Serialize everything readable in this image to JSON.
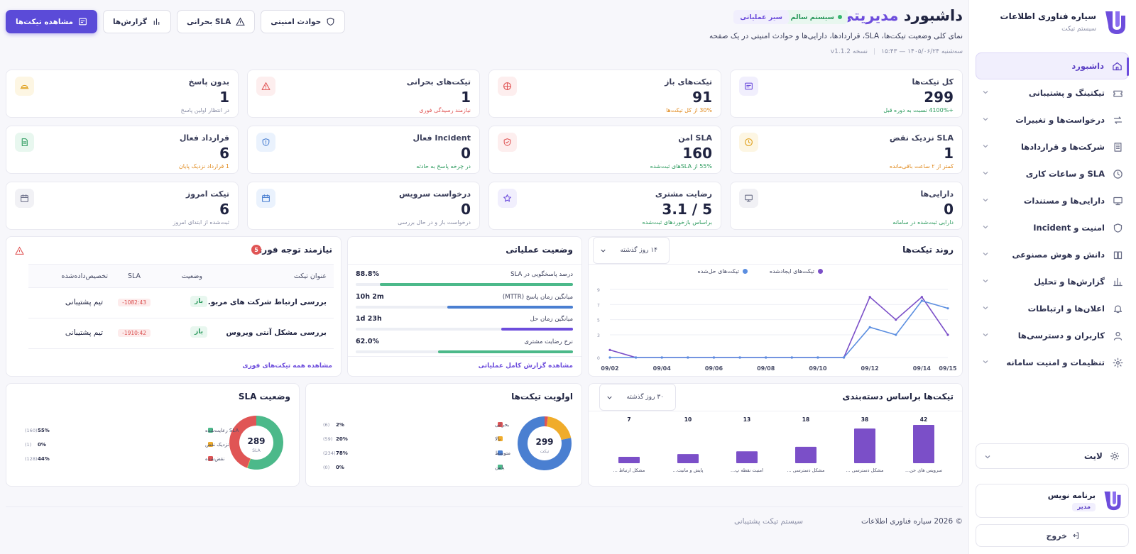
{
  "brand": {
    "title": "سیاره فناوری اطلاعات",
    "subtitle": "سیستم تیکت"
  },
  "sidebar": {
    "items": [
      {
        "label": "داشبورد",
        "icon": "home-icon",
        "active": true
      },
      {
        "label": "تیکتینگ و پشتیبانی",
        "icon": "ticket-icon"
      },
      {
        "label": "درخواست‌ها و تغییرات",
        "icon": "swap-icon"
      },
      {
        "label": "شرکت‌ها و قراردادها",
        "icon": "building-icon"
      },
      {
        "label": "SLA و ساعات کاری",
        "icon": "clock-icon"
      },
      {
        "label": "دارایی‌ها و مستندات",
        "icon": "monitor-icon"
      },
      {
        "label": "امنیت و Incident",
        "icon": "shield-icon"
      },
      {
        "label": "دانش و هوش مصنوعی",
        "icon": "book-icon"
      },
      {
        "label": "گزارش‌ها و تحلیل",
        "icon": "bar-chart-icon"
      },
      {
        "label": "اعلان‌ها و ارتباطات",
        "icon": "bell-icon"
      },
      {
        "label": "کاربران و دسترسی‌ها",
        "icon": "user-icon"
      },
      {
        "label": "تنظیمات و امنیت سامانه",
        "icon": "gear-icon"
      }
    ],
    "theme_label": "لایت",
    "user": {
      "name": "برنامه نویس",
      "role": "مدیر"
    },
    "logout_label": "خروج"
  },
  "header": {
    "title_part1": "داشبورد",
    "title_part2": "مدیریتی",
    "status_badge": "سیستم سالم",
    "mode_badge": "سیر عملیاتی",
    "description": "نمای کلی وضعیت تیکت‌ها، SLA، قراردادها، دارایی‌ها و حوادث امنیتی در یک صفحه",
    "date": "سه‌شنبه ۱۴۰۵/۰۶/۲۴ — ۱۵:۴۳",
    "version": "نسخه v1.1.2",
    "actions": {
      "security": "حوادث امنیتی",
      "sla": "SLA بحرانی",
      "reports": "گزارش‌ها",
      "view_tickets": "مشاهده تیکت‌ها"
    }
  },
  "stats": [
    {
      "label": "کل تیکت‌ها",
      "value": "299",
      "note": "+4100% نسبت به دوره قبل",
      "note_color": "#2b9a5d",
      "icon": "message-icon",
      "tint": "#f1effd",
      "ink": "#6d4ddc"
    },
    {
      "label": "تیکت‌های باز",
      "value": "91",
      "note": "30% از کل تیکت‌ها",
      "note_color": "#e08a1e",
      "icon": "target-icon",
      "tint": "#fdeeee",
      "ink": "#e05555"
    },
    {
      "label": "تیکت‌های بحرانی",
      "value": "1",
      "note": "نیازمند رسیدگی فوری",
      "note_color": "#e05555",
      "icon": "warning-icon",
      "tint": "#fdeeee",
      "ink": "#e05555"
    },
    {
      "label": "بدون پاسخ",
      "value": "1",
      "note": "در انتظار اولین پاسخ",
      "note_color": "#8a8ea6",
      "icon": "hourglass-icon",
      "tint": "#fdf6e3",
      "ink": "#e0a11e"
    },
    {
      "label": "SLA نزدیک نقض",
      "value": "1",
      "note": "کمتر از ۲ ساعت باقی‌مانده",
      "note_color": "#e08a1e",
      "icon": "clock-icon",
      "tint": "#fdf6e3",
      "ink": "#e0a11e"
    },
    {
      "label": "SLA امن",
      "value": "160",
      "note": "55% از SLAهای ثبت‌شده",
      "note_color": "#2b9a5d",
      "icon": "shield-check-icon",
      "tint": "#fdeeee",
      "ink": "#e05555"
    },
    {
      "label": "Incident فعال",
      "value": "0",
      "note": "در چرخه پاسخ به حادثه",
      "note_color": "#2b9a5d",
      "icon": "shield-alert-icon",
      "tint": "#eaf2fd",
      "ink": "#4a7fd1"
    },
    {
      "label": "قرارداد فعال",
      "value": "6",
      "note": "1 قرارداد نزدیک پایان",
      "note_color": "#e08a1e",
      "icon": "document-icon",
      "tint": "#e8f7ef",
      "ink": "#2b9a5d"
    },
    {
      "label": "دارایی‌ها",
      "value": "0",
      "note": "دارایی ثبت‌شده در سامانه",
      "note_color": "#2b9a5d",
      "icon": "monitor-icon",
      "tint": "#f1f1f5",
      "ink": "#6b6f88"
    },
    {
      "label": "رضایت مشتری",
      "value": "5 / 3.1",
      "note": "براساس بازخوردهای ثبت‌شده",
      "note_color": "#2b9a5d",
      "icon": "star-icon",
      "tint": "#f1effd",
      "ink": "#6d4ddc"
    },
    {
      "label": "درخواست سرویس",
      "value": "0",
      "note": "درخواست باز و در حال بررسی",
      "note_color": "#8a8ea6",
      "icon": "calendar-icon",
      "tint": "#eaf2fd",
      "ink": "#4a7fd1"
    },
    {
      "label": "تیکت امروز",
      "value": "6",
      "note": "ثبت‌شده از ابتدای امروز",
      "note_color": "#8a8ea6",
      "icon": "calendar-icon",
      "tint": "#f1f1f5",
      "ink": "#6b6f88"
    }
  ],
  "trend": {
    "title": "روند تیکت‌ها",
    "range": "۱۴ روز گذشته",
    "legend_created": "تیکت‌های ایجادشده",
    "legend_resolved": "تیکت‌های حل‌شده"
  },
  "ops": {
    "title": "وضعیت عملیاتی",
    "rows": [
      {
        "label": "درصد پاسخگویی در SLA",
        "value": "88.8%",
        "fill": 0.888,
        "color": "#4cb98a"
      },
      {
        "label": "میانگین زمان پاسخ (MTTR)",
        "value": "10h 2m",
        "fill": 0.58,
        "color": "#4a7fd1"
      },
      {
        "label": "میانگین زمان حل",
        "value": "1d 23h",
        "fill": 0.33,
        "color": "#6d4ddc"
      },
      {
        "label": "نرخ رضایت مشتری",
        "value": "62.0%",
        "fill": 0.62,
        "color": "#4cb98a"
      }
    ],
    "link": "مشاهده گزارش کامل عملیاتی"
  },
  "urgent": {
    "title": "نیازمند توجه فوری",
    "count": "5",
    "columns": {
      "title": "عنوان تیکت",
      "status": "وضعیت",
      "sla": "SLA",
      "assigned": "تخصیص‌داده‌شده"
    },
    "rows": [
      {
        "title": "بررسی ارتباط شرکت های مربو...",
        "status": "باز",
        "sla": "-1082:43",
        "team": "تیم پشتیبانی"
      },
      {
        "title": "بررسی مشکل آنتی ویروس",
        "status": "باز",
        "sla": "-1910:42",
        "team": "تیم پشتیبانی"
      }
    ],
    "link": "مشاهده همه تیکت‌های فوری"
  },
  "category": {
    "title": "تیکت‌ها براساس دسته‌بندی",
    "range": "۳۰ روز گذشته"
  },
  "priority": {
    "title": "اولویت تیکت‌ها",
    "center_value": "299",
    "center_label": "تیکت",
    "items": [
      {
        "label": "بحرانی",
        "count": "(6)",
        "pct": "2%",
        "color": "#e05555"
      },
      {
        "label": "بالا",
        "count": "(59)",
        "pct": "20%",
        "color": "#f0ac2a"
      },
      {
        "label": "متوسط",
        "count": "(234)",
        "pct": "78%",
        "color": "#4a7fd1"
      },
      {
        "label": "پایین",
        "count": "(0)",
        "pct": "0%",
        "color": "#4cb98a"
      }
    ]
  },
  "sla": {
    "title": "وضعیت SLA",
    "center_value": "289",
    "center_label": "SLA",
    "items": [
      {
        "label": "SLA رعایت‌شده",
        "count": "(160)",
        "pct": "55%",
        "color": "#4cb98a"
      },
      {
        "label": "نزدیک نقض",
        "count": "(1)",
        "pct": "0%",
        "color": "#f0ac2a"
      },
      {
        "label": "نقض‌شده",
        "count": "(128)",
        "pct": "44%",
        "color": "#e05555"
      }
    ]
  },
  "footer": {
    "copyright": "© 2026 سیاره فناوری اطلاعات",
    "system": "سیستم تیکت پشتیبانی"
  },
  "chart_data": [
    {
      "type": "line",
      "title": "روند تیکت‌ها",
      "x": [
        "09/02",
        "09/03",
        "09/04",
        "09/05",
        "09/06",
        "09/07",
        "09/08",
        "09/09",
        "09/10",
        "09/11",
        "09/12",
        "09/13",
        "09/14",
        "09/15"
      ],
      "x_tick_labels": [
        "09/02",
        "09/04",
        "09/06",
        "09/08",
        "09/10",
        "09/12",
        "09/14",
        "09/15"
      ],
      "series": [
        {
          "name": "تیکت‌های ایجادشده",
          "color": "#7b4fc8",
          "values": [
            1,
            0,
            0,
            0,
            0,
            0,
            0,
            0,
            0,
            0,
            8,
            5,
            8,
            3
          ]
        },
        {
          "name": "تیکت‌های حل‌شده",
          "color": "#5b8ee0",
          "values": [
            0,
            0,
            0,
            0,
            0,
            0,
            0,
            0,
            0,
            0,
            4,
            3,
            7.5,
            6.5
          ]
        }
      ],
      "y_ticks": [
        0,
        3,
        5,
        7,
        9
      ],
      "ylim": [
        0,
        9
      ],
      "legend": "top-center",
      "grid": true
    },
    {
      "type": "bar",
      "title": "تیکت‌ها براساس دسته‌بندی",
      "categories": [
        "سرویس های حن...",
        "مشکل دسترسی ...",
        "مشکل دسترسی ...",
        "امنیت نقطه پ...",
        "پایش و مانیت...",
        "مشکل ارتباط ..."
      ],
      "values": [
        42,
        38,
        18,
        13,
        10,
        7
      ],
      "color": "#7b4fc8"
    },
    {
      "type": "pie",
      "title": "اولویت تیکت‌ها",
      "categories": [
        "بحرانی",
        "بالا",
        "متوسط",
        "پایین"
      ],
      "values": [
        6,
        59,
        234,
        0
      ]
    },
    {
      "type": "pie",
      "title": "وضعیت SLA",
      "categories": [
        "SLA رعایت‌شده",
        "نزدیک نقض",
        "نقض‌شده"
      ],
      "values": [
        160,
        1,
        128
      ]
    }
  ]
}
